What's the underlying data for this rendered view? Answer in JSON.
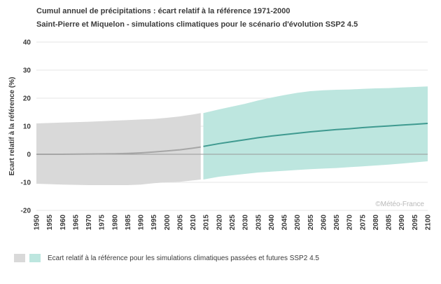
{
  "chart_data": {
    "type": "area",
    "title": "Cumul annuel de précipitations : écart relatif à la référence 1971-2000",
    "subtitle": "Saint-Pierre et Miquelon - simulations climatiques pour le scénario d'évolution SSP2 4.5",
    "ylabel": "Ecart relatif à la référence (%)",
    "xlabel": "",
    "ylim": [
      -20,
      40
    ],
    "xlim": [
      1950,
      2100
    ],
    "yticks": [
      "40",
      "30",
      "20",
      "10",
      "0",
      "-10",
      "-20"
    ],
    "xticks": [
      "1950",
      "1955",
      "1960",
      "1965",
      "1970",
      "1975",
      "1980",
      "1985",
      "1990",
      "1995",
      "2000",
      "2005",
      "2010",
      "2015",
      "2020",
      "2025",
      "2030",
      "2035",
      "2040",
      "2045",
      "2050",
      "2055",
      "2060",
      "2065",
      "2070",
      "2075",
      "2080",
      "2085",
      "2090",
      "2095",
      "2100"
    ],
    "grid": "horizontal",
    "credit": "©Météo-France",
    "colors": {
      "past_band": "#d9d9d9",
      "past_line": "#a6a6a6",
      "future_band": "#bde6df",
      "future_line": "#3f9a90",
      "zero_line": "#999999",
      "grid": "#e6e6e6"
    },
    "series": [
      {
        "segment": "past",
        "x": [
          1950,
          1960,
          1970,
          1980,
          1985,
          1990,
          1995,
          2000,
          2005,
          2010,
          2013
        ],
        "lower": [
          -10.5,
          -10.8,
          -11,
          -11,
          -11,
          -10.8,
          -10.3,
          -10,
          -9.8,
          -9.3,
          -9
        ],
        "upper": [
          11,
          11.3,
          11.6,
          12,
          12.2,
          12.4,
          12.6,
          13,
          13.5,
          14.2,
          14.7
        ],
        "median": [
          0,
          0,
          0.1,
          0.2,
          0.3,
          0.5,
          0.8,
          1.2,
          1.6,
          2.2,
          2.6
        ]
      },
      {
        "segment": "future",
        "x": [
          2014,
          2020,
          2025,
          2030,
          2035,
          2040,
          2045,
          2050,
          2055,
          2060,
          2065,
          2070,
          2075,
          2080,
          2085,
          2090,
          2095,
          2100
        ],
        "lower": [
          -9,
          -8,
          -7.5,
          -7,
          -6.5,
          -6.2,
          -5.9,
          -5.6,
          -5.3,
          -5.1,
          -4.9,
          -4.6,
          -4.3,
          -4,
          -3.7,
          -3.3,
          -2.9,
          -2.5
        ],
        "upper": [
          14.7,
          16,
          17,
          18,
          19.2,
          20.2,
          21.1,
          21.9,
          22.5,
          22.8,
          23,
          23.1,
          23.3,
          23.5,
          23.6,
          23.8,
          24,
          24.2
        ],
        "median": [
          2.8,
          3.8,
          4.5,
          5.2,
          5.9,
          6.5,
          7,
          7.5,
          8,
          8.4,
          8.8,
          9.1,
          9.5,
          9.8,
          10.1,
          10.4,
          10.7,
          11
        ]
      }
    ],
    "legend": {
      "label": "Ecart relatif à la référence pour les simulations climatiques passées et futures SSP2 4.5"
    }
  }
}
